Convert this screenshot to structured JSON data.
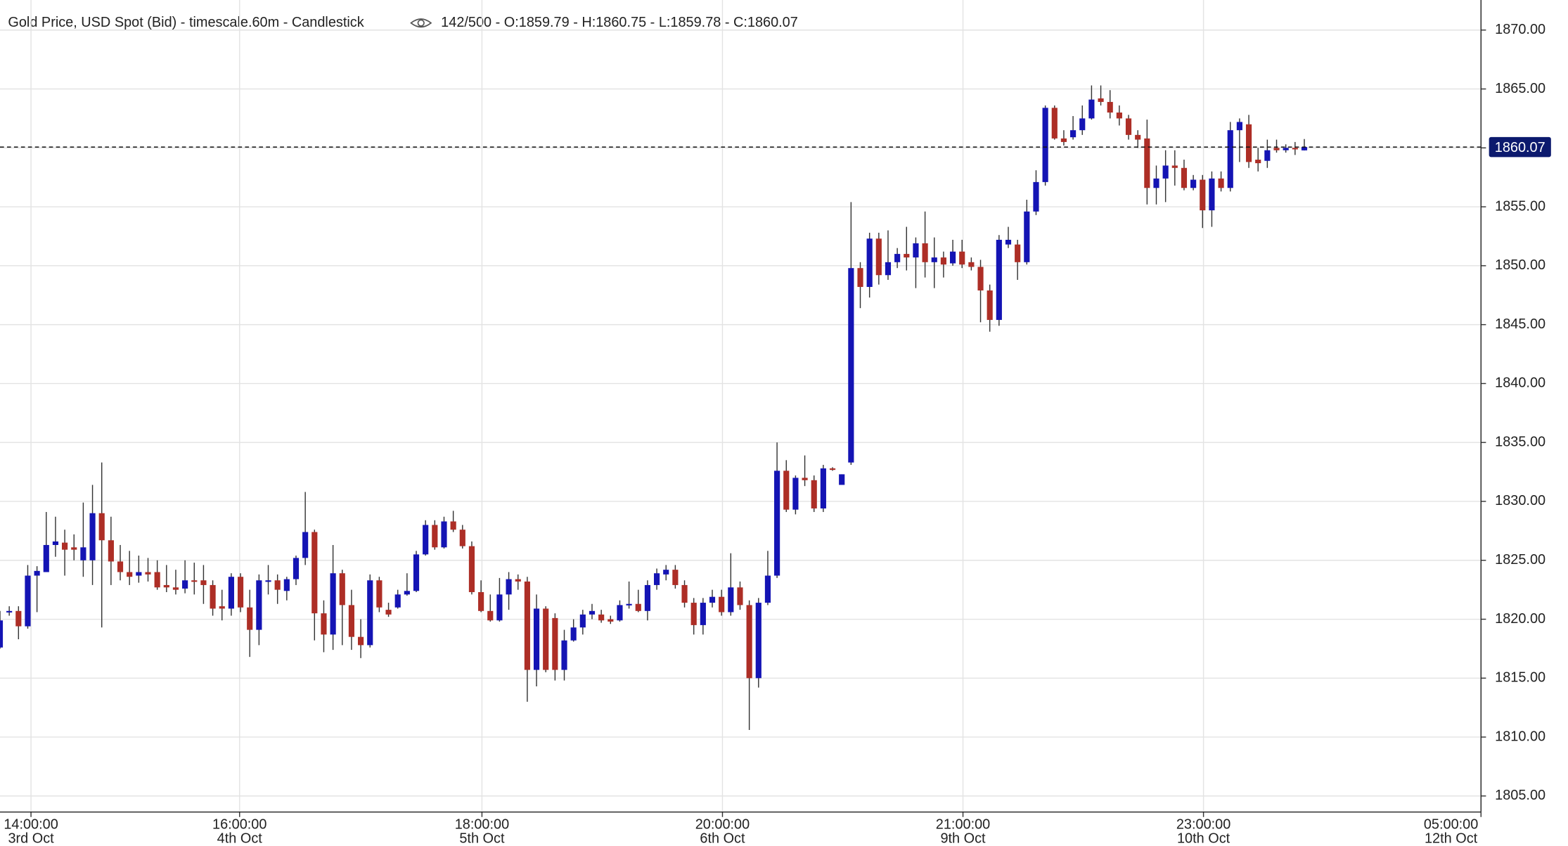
{
  "chart_data": {
    "type": "candlestick",
    "title": "Gold Price, USD Spot (Bid) - timescale.60m - Candlestick",
    "info": "142/500 - O:1859.79 - H:1860.75 - L:1859.78 - C:1860.07",
    "up_color": "#1414b4",
    "down_color": "#ad2e26",
    "wick_color": "#333333",
    "last_price": 1860.07,
    "last_price_color": "#0c1a6e",
    "grid": true,
    "xlim": [
      0,
      160.1
    ],
    "xticks": [
      {
        "value": 3.35,
        "label": "14:00:00",
        "date": "3rd Oct"
      },
      {
        "value": 25.9,
        "label": "16:00:00",
        "date": "4th Oct"
      },
      {
        "value": 52.1,
        "label": "18:00:00",
        "date": "5th Oct"
      },
      {
        "value": 78.1,
        "label": "20:00:00",
        "date": "6th Oct"
      },
      {
        "value": 104.1,
        "label": "21:00:00",
        "date": "9th Oct"
      },
      {
        "value": 130.1,
        "label": "23:00:00",
        "date": "10th Oct"
      },
      {
        "value": 160.1,
        "label": "05:00:00",
        "date": "12th Oct"
      }
    ],
    "ylim": [
      1803.64,
      1872.55
    ],
    "yticks": [
      {
        "value": 1805,
        "label": "1805.00"
      },
      {
        "value": 1810,
        "label": "1810.00"
      },
      {
        "value": 1815,
        "label": "1815.00"
      },
      {
        "value": 1820,
        "label": "1820.00"
      },
      {
        "value": 1825,
        "label": "1825.00"
      },
      {
        "value": 1830,
        "label": "1830.00"
      },
      {
        "value": 1835,
        "label": "1835.00"
      },
      {
        "value": 1840,
        "label": "1840.00"
      },
      {
        "value": 1845,
        "label": "1845.00"
      },
      {
        "value": 1850,
        "label": "1850.00"
      },
      {
        "value": 1855,
        "label": "1855.00"
      },
      {
        "value": 1860,
        "label": "1860.00"
      },
      {
        "value": 1865,
        "label": "1865.00"
      },
      {
        "value": 1870,
        "label": "1870.00"
      }
    ],
    "open": [
      1817.6,
      1820.6,
      1820.7,
      1819.4,
      1823.7,
      1824.0,
      1826.3,
      1826.5,
      1826.1,
      1825.0,
      1825.0,
      1829.0,
      1826.7,
      1824.9,
      1824.0,
      1823.7,
      1824.0,
      1824.0,
      1822.9,
      1822.7,
      1822.6,
      1823.3,
      1823.3,
      1822.9,
      1821.1,
      1820.9,
      1823.6,
      1821.0,
      1819.1,
      1823.2,
      1823.3,
      1822.4,
      1823.4,
      1825.2,
      1827.4,
      1820.5,
      1818.7,
      1823.9,
      1821.2,
      1818.5,
      1817.8,
      1823.3,
      1820.8,
      1821.0,
      1822.1,
      1822.4,
      1825.5,
      1828.0,
      1826.1,
      1828.3,
      1827.6,
      1826.2,
      1822.3,
      1820.7,
      1819.9,
      1822.1,
      1823.4,
      1823.2,
      1815.7,
      1820.9,
      1820.1,
      1815.7,
      1818.2,
      1819.3,
      1820.4,
      1820.4,
      1820.0,
      1819.9,
      1821.2,
      1821.3,
      1820.7,
      1822.9,
      1823.8,
      1824.2,
      1822.9,
      1821.4,
      1819.5,
      1821.4,
      1821.9,
      1820.6,
      1822.7,
      1821.2,
      1815.0,
      1821.4,
      1823.7,
      1832.6,
      1829.3,
      1832.0,
      1831.8,
      1829.4,
      1832.8,
      1831.4,
      1833.3,
      1849.8,
      1848.2,
      1852.3,
      1849.2,
      1850.3,
      1851.0,
      1850.7,
      1851.9,
      1850.3,
      1850.7,
      1850.2,
      1851.2,
      1850.3,
      1849.9,
      1847.9,
      1845.4,
      1851.8,
      1851.8,
      1850.3,
      1854.6,
      1857.1,
      1863.4,
      1860.8,
      1860.9,
      1861.5,
      1862.5,
      1864.2,
      1863.9,
      1863.0,
      1862.5,
      1861.1,
      1860.8,
      1856.6,
      1857.4,
      1858.5,
      1858.3,
      1856.6,
      1857.3,
      1854.7,
      1857.4,
      1856.6,
      1861.5,
      1862.0,
      1859.0,
      1858.9,
      1860.0,
      1859.8,
      1860.0,
      1859.79
    ],
    "high": [
      1820.7,
      1821.1,
      1821.1,
      1824.6,
      1824.5,
      1829.1,
      1828.7,
      1827.6,
      1827.2,
      1829.9,
      1831.4,
      1833.3,
      1828.7,
      1826.3,
      1825.8,
      1825.4,
      1825.2,
      1825.0,
      1824.6,
      1824.2,
      1825.0,
      1824.8,
      1824.6,
      1823.3,
      1822.5,
      1823.9,
      1823.9,
      1822.5,
      1823.8,
      1824.6,
      1823.8,
      1823.6,
      1825.4,
      1830.8,
      1827.6,
      1821.6,
      1826.3,
      1824.2,
      1822.5,
      1820.0,
      1823.8,
      1823.6,
      1821.4,
      1822.5,
      1823.9,
      1825.8,
      1828.4,
      1828.4,
      1828.7,
      1829.2,
      1828.0,
      1826.6,
      1823.3,
      1822.1,
      1823.5,
      1824.0,
      1823.8,
      1823.6,
      1822.1,
      1821.1,
      1820.5,
      1819.1,
      1820.0,
      1820.8,
      1821.3,
      1820.8,
      1820.3,
      1821.6,
      1823.2,
      1822.5,
      1823.3,
      1824.3,
      1824.6,
      1824.6,
      1823.3,
      1821.8,
      1821.8,
      1822.5,
      1822.5,
      1825.6,
      1823.2,
      1821.6,
      1821.8,
      1825.8,
      1835.0,
      1833.5,
      1832.2,
      1833.9,
      1832.2,
      1833.1,
      1832.9,
      1832.3,
      1855.4,
      1850.3,
      1852.8,
      1852.8,
      1853.0,
      1851.5,
      1853.3,
      1852.4,
      1854.6,
      1852.4,
      1851.2,
      1852.2,
      1852.2,
      1850.7,
      1850.5,
      1848.4,
      1852.6,
      1853.3,
      1852.2,
      1855.6,
      1858.1,
      1863.6,
      1863.6,
      1861.5,
      1862.7,
      1863.6,
      1865.3,
      1865.3,
      1864.9,
      1863.6,
      1862.8,
      1861.5,
      1862.4,
      1858.5,
      1859.8,
      1859.8,
      1859.0,
      1857.7,
      1857.7,
      1858.0,
      1858.0,
      1862.2,
      1862.5,
      1862.8,
      1860.0,
      1860.7,
      1860.7,
      1860.3,
      1860.5,
      1860.75
    ],
    "low": [
      1817.5,
      1820.3,
      1818.3,
      1819.2,
      1820.6,
      1824.0,
      1825.3,
      1823.7,
      1825.0,
      1823.6,
      1822.9,
      1819.3,
      1822.9,
      1823.3,
      1822.9,
      1823.1,
      1823.2,
      1822.5,
      1822.3,
      1822.1,
      1822.2,
      1822.1,
      1821.3,
      1820.3,
      1819.9,
      1820.3,
      1820.6,
      1816.8,
      1817.8,
      1822.1,
      1821.3,
      1821.6,
      1822.9,
      1824.6,
      1818.2,
      1817.2,
      1817.4,
      1817.8,
      1817.4,
      1816.7,
      1817.6,
      1820.6,
      1820.2,
      1820.9,
      1822.0,
      1822.3,
      1825.4,
      1825.9,
      1826.0,
      1827.4,
      1826.0,
      1822.1,
      1820.6,
      1819.8,
      1819.8,
      1820.8,
      1822.5,
      1813.0,
      1814.3,
      1815.5,
      1814.8,
      1814.8,
      1818.1,
      1818.7,
      1820.0,
      1819.7,
      1819.6,
      1819.8,
      1820.9,
      1820.6,
      1819.9,
      1822.5,
      1823.3,
      1822.6,
      1821.0,
      1818.7,
      1818.7,
      1821.0,
      1820.3,
      1820.3,
      1820.8,
      1810.6,
      1814.2,
      1821.2,
      1823.5,
      1829.1,
      1828.9,
      1831.3,
      1829.1,
      1829.1,
      1832.6,
      1831.4,
      1833.1,
      1846.4,
      1847.3,
      1848.4,
      1848.8,
      1849.8,
      1849.6,
      1848.1,
      1849.0,
      1848.1,
      1849.0,
      1850.0,
      1849.8,
      1849.6,
      1845.2,
      1844.4,
      1844.9,
      1851.5,
      1848.8,
      1850.1,
      1854.3,
      1856.8,
      1860.7,
      1860.2,
      1860.7,
      1861.1,
      1862.4,
      1863.6,
      1862.5,
      1861.9,
      1860.7,
      1860.0,
      1855.2,
      1855.2,
      1855.4,
      1856.8,
      1856.4,
      1856.4,
      1853.2,
      1853.3,
      1856.3,
      1856.3,
      1858.8,
      1858.3,
      1858.0,
      1858.3,
      1859.6,
      1859.6,
      1859.4,
      1859.78
    ],
    "close": [
      1819.9,
      1820.7,
      1819.4,
      1823.7,
      1824.1,
      1826.3,
      1826.6,
      1825.9,
      1825.9,
      1826.1,
      1829.0,
      1826.7,
      1824.9,
      1824.0,
      1823.6,
      1824.0,
      1823.8,
      1822.7,
      1822.7,
      1822.5,
      1823.3,
      1823.2,
      1822.9,
      1820.9,
      1820.9,
      1823.6,
      1821.0,
      1819.1,
      1823.3,
      1823.3,
      1822.5,
      1823.4,
      1825.2,
      1827.4,
      1820.5,
      1818.7,
      1823.9,
      1821.2,
      1818.5,
      1817.8,
      1823.3,
      1821.0,
      1820.4,
      1822.1,
      1822.4,
      1825.5,
      1828.0,
      1826.1,
      1828.3,
      1827.6,
      1826.2,
      1822.3,
      1820.7,
      1819.9,
      1822.1,
      1823.4,
      1823.2,
      1815.7,
      1820.9,
      1815.7,
      1815.7,
      1818.2,
      1819.3,
      1820.4,
      1820.7,
      1819.9,
      1819.8,
      1821.2,
      1821.3,
      1820.7,
      1822.9,
      1823.9,
      1824.2,
      1822.9,
      1821.4,
      1819.5,
      1821.4,
      1821.9,
      1820.6,
      1822.7,
      1821.2,
      1815.0,
      1821.4,
      1823.7,
      1832.6,
      1829.3,
      1832.0,
      1831.8,
      1829.4,
      1832.8,
      1832.7,
      1832.3,
      1849.8,
      1848.2,
      1852.3,
      1849.2,
      1850.3,
      1851.0,
      1850.7,
      1851.9,
      1850.3,
      1850.7,
      1850.1,
      1851.2,
      1850.1,
      1849.9,
      1847.9,
      1845.4,
      1852.2,
      1852.2,
      1850.3,
      1854.6,
      1857.1,
      1863.4,
      1860.8,
      1860.5,
      1861.5,
      1862.5,
      1864.1,
      1863.9,
      1863.0,
      1862.5,
      1861.1,
      1860.7,
      1856.6,
      1857.4,
      1858.5,
      1858.3,
      1856.6,
      1857.3,
      1854.7,
      1857.4,
      1856.6,
      1861.5,
      1862.2,
      1858.8,
      1858.7,
      1859.8,
      1859.8,
      1860.0,
      1859.9,
      1860.07
    ]
  }
}
